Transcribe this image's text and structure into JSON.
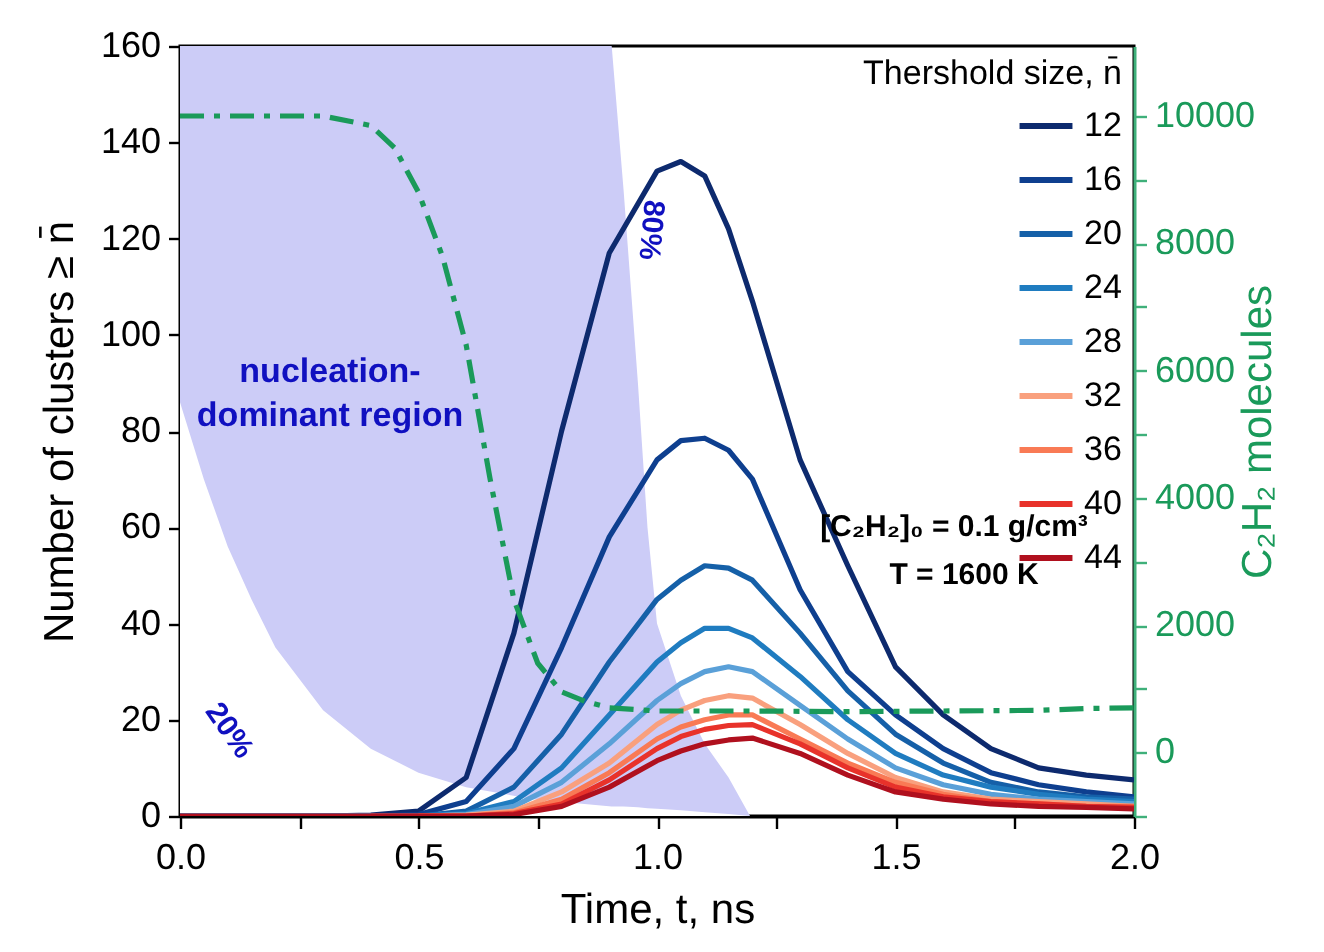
{
  "chart_data": {
    "type": "line",
    "xlabel": "Time, t, ns",
    "ylabel": "Number of clusters ≥ n̄",
    "y2label": "C₂H₂ molecules",
    "legend_title": "Thershold size, n̄",
    "legend": "top right",
    "grid": false,
    "marker": "none",
    "xlim": [
      0,
      2
    ],
    "xticks": [
      {
        "value": 0,
        "label": "0.0"
      },
      {
        "value": 0.25,
        "label": null
      },
      {
        "value": 0.5,
        "label": "0.5"
      },
      {
        "value": 0.75,
        "label": null
      },
      {
        "value": 1,
        "label": "1.0"
      },
      {
        "value": 1.25,
        "label": null
      },
      {
        "value": 1.5,
        "label": "1.5"
      },
      {
        "value": 1.75,
        "label": null
      },
      {
        "value": 2,
        "label": "2.0"
      }
    ],
    "ylim": [
      0,
      160
    ],
    "yticks": [
      0,
      20,
      40,
      60,
      80,
      100,
      120,
      140,
      160
    ],
    "y2lim": [
      -1000,
      11100
    ],
    "y2ticks": [
      {
        "value": -1000,
        "label": null
      },
      0,
      {
        "value": 1000,
        "label": null
      },
      2000,
      {
        "value": 3000,
        "label": null
      },
      4000,
      {
        "value": 5000,
        "label": null
      },
      6000,
      {
        "value": 7000,
        "label": null
      },
      8000,
      {
        "value": 9000,
        "label": null
      },
      10000
    ],
    "x": [
      0,
      0.3,
      0.4,
      0.5,
      0.6,
      0.7,
      0.8,
      0.9,
      1.0,
      1.05,
      1.1,
      1.15,
      1.2,
      1.3,
      1.4,
      1.5,
      1.6,
      1.7,
      1.8,
      1.9,
      2.0
    ],
    "series": [
      {
        "type": "area",
        "color": "#ccccf7",
        "x": [
          0,
          0.05,
          0.1,
          0.15,
          0.2,
          0.3,
          0.4,
          0.5,
          0.6,
          0.74,
          0.905,
          0.93,
          0.96,
          0.98,
          1.0,
          1.05,
          1.1,
          1.15,
          1.195
        ],
        "values": [
          160,
          160,
          160,
          160,
          160,
          160,
          160,
          160,
          160,
          160,
          160,
          130,
          90,
          60,
          40,
          25,
          15,
          8,
          0
        ]
      },
      {
        "type": "area",
        "color": "#ffffff",
        "x": [
          0,
          0.05,
          0.1,
          0.15,
          0.2,
          0.3,
          0.4,
          0.5,
          0.6,
          0.74,
          0.905,
          0.93,
          0.96,
          0.98,
          1.0,
          1.05,
          1.1,
          1.15,
          1.195
        ],
        "values": [
          86,
          70,
          56,
          45,
          35,
          22,
          14,
          9,
          6,
          3.5,
          2,
          2,
          1.8,
          1.6,
          1.5,
          1.2,
          0.8,
          0.4,
          0
        ]
      },
      {
        "name": "12",
        "color": "#0d2a6e",
        "values": [
          0,
          0,
          0.2,
          1,
          8,
          38,
          80,
          117,
          134,
          136,
          133,
          122,
          107,
          74,
          52,
          31,
          21,
          14,
          10,
          8.5,
          7.5
        ]
      },
      {
        "name": "16",
        "color": "#0e3f8f",
        "values": [
          0,
          0,
          0,
          0.3,
          3,
          14,
          35,
          58,
          74,
          78,
          78.5,
          76,
          70,
          47,
          30,
          21,
          14,
          9,
          6.5,
          5,
          4
        ]
      },
      {
        "name": "20",
        "color": "#1560a8",
        "values": [
          0,
          0,
          0,
          0,
          1,
          6,
          17,
          32,
          45,
          49,
          52,
          51.5,
          49,
          38,
          26,
          17,
          11,
          7,
          5,
          4,
          3.5
        ]
      },
      {
        "name": "24",
        "color": "#1f7cc0",
        "values": [
          0,
          0,
          0,
          0,
          0.5,
          3,
          10,
          21,
          32,
          36,
          39,
          39,
          37,
          29,
          20,
          13,
          8.5,
          6,
          4.5,
          3.5,
          3
        ]
      },
      {
        "name": "28",
        "color": "#5aa0d8",
        "values": [
          0,
          0,
          0,
          0,
          0.3,
          2,
          7,
          15,
          24,
          27.5,
          30,
          31,
          30,
          23,
          16,
          10,
          6.5,
          4.5,
          3.5,
          3,
          2.5
        ]
      },
      {
        "name": "32",
        "color": "#f9a07e",
        "values": [
          null,
          null,
          null,
          0,
          0.2,
          1,
          5,
          11,
          19,
          22,
          24,
          25,
          24.5,
          19,
          13,
          8,
          5,
          3.5,
          3,
          2.5,
          2
        ]
      },
      {
        "name": "36",
        "color": "#f97a55",
        "values": [
          null,
          null,
          null,
          0,
          0,
          0.7,
          3.5,
          9,
          16,
          18.5,
          20,
          21,
          21,
          16,
          11,
          7,
          4.5,
          3,
          2.5,
          2,
          2
        ]
      },
      {
        "name": "40",
        "color": "#e8322a",
        "values": [
          null,
          null,
          0,
          0,
          0,
          0.5,
          2.5,
          7.5,
          14,
          16.5,
          18,
          18.8,
          19,
          15,
          10,
          6,
          4,
          3,
          2.5,
          2,
          1.8
        ]
      },
      {
        "name": "44",
        "color": "#b0101e",
        "values": [
          0,
          0,
          0,
          0,
          0,
          0.3,
          2,
          6,
          11.5,
          13.5,
          15,
          15.8,
          16.2,
          13,
          8.5,
          5,
          3.5,
          2.5,
          2,
          1.8,
          1.5
        ]
      },
      {
        "axis": "y2",
        "color": "#1a9a5a",
        "line_style": "dashed",
        "x": [
          0,
          0.3,
          0.4,
          0.45,
          0.5,
          0.55,
          0.6,
          0.65,
          0.7,
          0.75,
          0.8,
          0.85,
          0.9,
          1.0,
          1.2,
          1.4,
          1.6,
          1.8,
          1.9,
          2.0
        ],
        "values": [
          10000,
          10000,
          9850,
          9500,
          8800,
          7800,
          6400,
          4300,
          2400,
          1400,
          950,
          800,
          700,
          650,
          650,
          640,
          650,
          660,
          690,
          700
        ]
      }
    ],
    "annotations": [
      "nucleation-\ndominant region",
      "20%",
      "80%",
      "[C₂H₂]₀ = 0.1 g/cm³",
      "T = 1600 K"
    ]
  }
}
